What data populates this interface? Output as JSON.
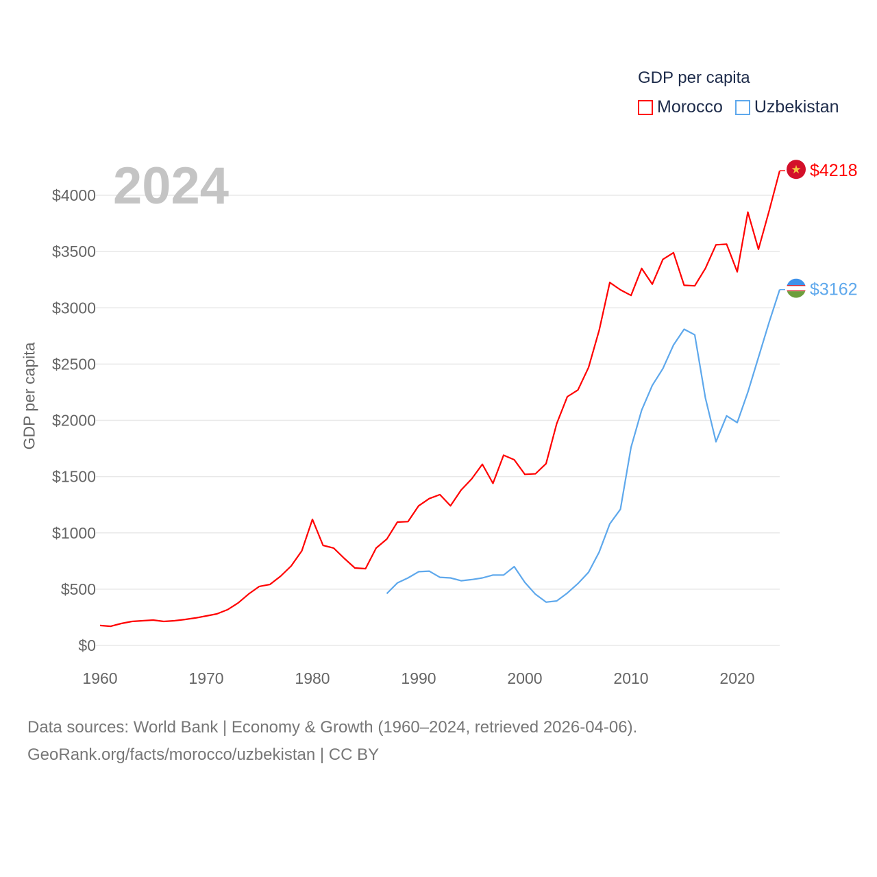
{
  "chart_data": {
    "type": "line",
    "title": "GDP per capita",
    "year_label": "2024",
    "ylabel": "GDP per capita",
    "xlabel": "",
    "xlim": [
      1960,
      2024
    ],
    "ylim": [
      0,
      4000
    ],
    "x_ticks": [
      1960,
      1970,
      1980,
      1990,
      2000,
      2010,
      2020
    ],
    "x_tick_labels": [
      "1960",
      "1970",
      "1980",
      "1990",
      "2000",
      "2010",
      "2020"
    ],
    "y_ticks": [
      0,
      500,
      1000,
      1500,
      2000,
      2500,
      3000,
      3500,
      4000
    ],
    "y_tick_labels": [
      "$0",
      "$500",
      "$1000",
      "$1500",
      "$2000",
      "$2500",
      "$3000",
      "$3500",
      "$4000"
    ],
    "grid": true,
    "legend_position": "top-right",
    "series": [
      {
        "name": "Morocco",
        "color": "#ff0000",
        "start_year": 1960,
        "end_label": "$4218",
        "values": [
          177,
          170,
          195,
          213,
          219,
          225,
          213,
          219,
          231,
          244,
          262,
          280,
          317,
          377,
          457,
          524,
          542,
          615,
          706,
          840,
          1120,
          889,
          865,
          773,
          688,
          682,
          865,
          944,
          1096,
          1100,
          1240,
          1305,
          1340,
          1240,
          1380,
          1480,
          1610,
          1440,
          1690,
          1650,
          1520,
          1525,
          1615,
          1970,
          2210,
          2270,
          2470,
          2800,
          3225,
          3160,
          3110,
          3350,
          3210,
          3430,
          3490,
          3200,
          3195,
          3350,
          3560,
          3565,
          3320,
          3850,
          3520,
          3860,
          4218
        ]
      },
      {
        "name": "Uzbekistan",
        "color": "#5ea8ec",
        "start_year": 1987,
        "end_label": "$3162",
        "values": [
          460,
          555,
          600,
          655,
          660,
          605,
          600,
          575,
          585,
          600,
          625,
          625,
          700,
          560,
          455,
          385,
          395,
          465,
          550,
          650,
          830,
          1080,
          1210,
          1760,
          2090,
          2310,
          2460,
          2670,
          2810,
          2760,
          2200,
          1810,
          2040,
          1980,
          2250,
          2560,
          2870,
          3162
        ]
      }
    ]
  },
  "footer": {
    "line1": "Data sources: World Bank | Economy & Growth (1960–2024, retrieved 2026-04-06).",
    "line2": "GeoRank.org/facts/morocco/uzbekistan | CC BY"
  }
}
